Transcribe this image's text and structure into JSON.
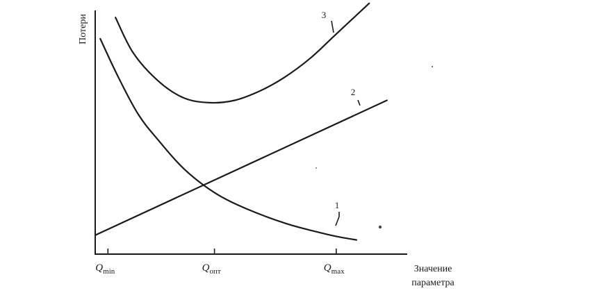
{
  "chart_data": {
    "type": "line",
    "ylabel": "Потери",
    "xlabel": [
      "Значение",
      "параметра"
    ],
    "x_ticks": [
      {
        "name": "q-min",
        "base": "Q",
        "sub": "min",
        "x": 0.0
      },
      {
        "name": "q-opt",
        "base": "Q",
        "sub": "опт",
        "x": 4.2
      },
      {
        "name": "q-max",
        "base": "Q",
        "sub": "max",
        "x": 9.0
      }
    ],
    "xlim": [
      -0.5,
      11.8
    ],
    "ylim": [
      0,
      10.3
    ],
    "grid": false,
    "series": [
      {
        "name": "1",
        "x": [
          -0.3,
          0.4,
          1.2,
          2.0,
          3.0,
          4.2,
          5.5,
          7.0,
          8.2,
          9.0,
          9.8
        ],
        "y": [
          9.1,
          7.5,
          5.9,
          4.8,
          3.6,
          2.6,
          1.9,
          1.3,
          0.95,
          0.75,
          0.6
        ]
      },
      {
        "name": "2",
        "x": [
          -0.5,
          11.0
        ],
        "y": [
          0.8,
          6.5
        ]
      },
      {
        "name": "3",
        "x": [
          0.3,
          1.0,
          2.0,
          3.0,
          4.0,
          5.0,
          6.0,
          7.0,
          8.0,
          9.0,
          10.3
        ],
        "y": [
          10.0,
          8.5,
          7.3,
          6.6,
          6.4,
          6.5,
          6.9,
          7.5,
          8.3,
          9.3,
          10.6
        ]
      }
    ]
  }
}
